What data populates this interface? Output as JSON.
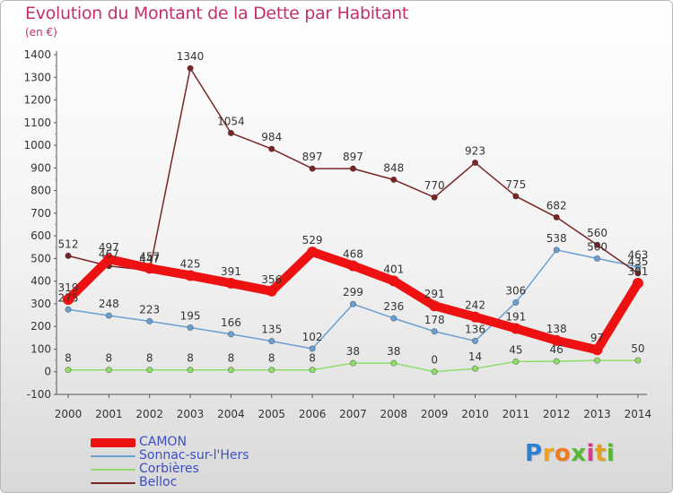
{
  "title": "Evolution du Montant de la Dette par Habitant",
  "subtitle": "(en €)",
  "logo": {
    "text": "Proxiti",
    "letters": [
      "P",
      "r",
      "o",
      "x",
      "i",
      "t",
      "i"
    ],
    "colors": [
      "#2f7fd0",
      "#f0a020",
      "#f07a20",
      "#58b830",
      "#d83a8a",
      "#e0a020",
      "#58b830"
    ]
  },
  "chart_data": {
    "type": "line",
    "title": "Evolution du Montant de la Dette par Habitant",
    "subtitle": "(en €)",
    "ylim": [
      -100,
      1400
    ],
    "yticks": [
      -100,
      0,
      100,
      200,
      300,
      400,
      500,
      600,
      700,
      800,
      900,
      1000,
      1100,
      1200,
      1300,
      1400
    ],
    "grid": false,
    "legend_position": "bottom-left",
    "x": [
      "2000",
      "2001",
      "2002",
      "2003",
      "2004",
      "2005",
      "2006",
      "2007",
      "2008",
      "2009",
      "2010",
      "2011",
      "2012",
      "2013",
      "2014"
    ],
    "series": [
      {
        "name": "CAMON",
        "color": "#ee1111",
        "thick": true,
        "values": [
          319,
          497,
          457,
          425,
          391,
          356,
          529,
          468,
          401,
          291,
          242,
          191,
          138,
          97,
          391
        ],
        "labels": [
          "319",
          "497",
          "457",
          "425",
          "391",
          "356",
          "529",
          "468",
          "401",
          "291",
          "242",
          "191",
          "138",
          "97",
          "391"
        ]
      },
      {
        "name": "Sonnac-sur-l'Hers",
        "color": "#6aa0d0",
        "values": [
          275,
          248,
          223,
          195,
          166,
          135,
          102,
          299,
          236,
          178,
          136,
          306,
          538,
          500,
          463
        ],
        "labels": [
          "275",
          "248",
          "223",
          "195",
          "166",
          "135",
          "102",
          "299",
          "236",
          "178",
          "136",
          "306",
          "538",
          "500",
          "463"
        ]
      },
      {
        "name": "Corbières",
        "color": "#90dc6a",
        "values": [
          8,
          8,
          8,
          8,
          8,
          8,
          8,
          38,
          38,
          0,
          14,
          45,
          46,
          50,
          50
        ],
        "labels": [
          "8",
          "8",
          "8",
          "8",
          "8",
          "8",
          "8",
          "38",
          "38",
          "0",
          "14",
          "45",
          "46",
          "",
          "50"
        ]
      },
      {
        "name": "Belloc",
        "color": "#7a2525",
        "values": [
          512,
          467,
          447,
          1340,
          1054,
          984,
          897,
          897,
          848,
          770,
          923,
          775,
          682,
          560,
          435
        ],
        "labels": [
          "512",
          "467",
          "447",
          "1340",
          "1054",
          "984",
          "897",
          "897",
          "848",
          "770",
          "923",
          "775",
          "682",
          "560",
          "435"
        ]
      }
    ]
  }
}
